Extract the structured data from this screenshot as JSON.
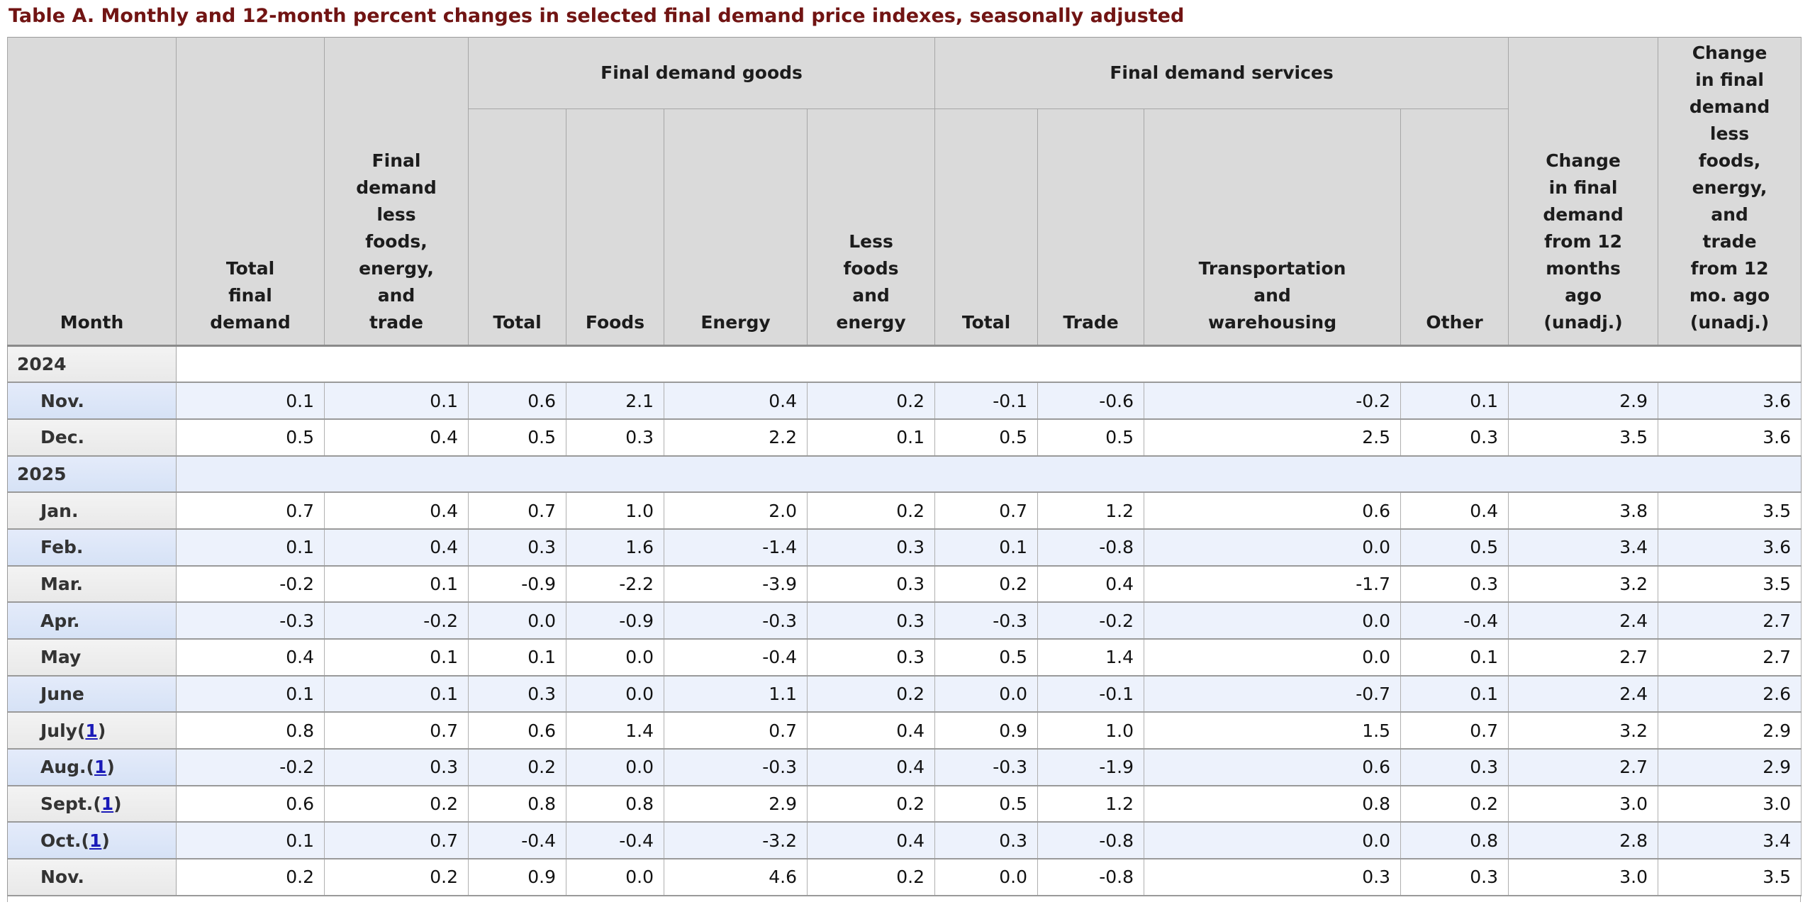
{
  "page": {
    "title": "Table A. Monthly and 12-month percent changes in selected final demand price indexes, seasonally adjusted"
  },
  "chart_data": {
    "type": "table",
    "title": "Table A. Monthly and 12-month percent changes in selected final demand price indexes, seasonally adjusted",
    "groups": [
      {
        "label": "Final demand goods",
        "span": 4
      },
      {
        "label": "Final demand services",
        "span": 4
      }
    ],
    "columns": [
      {
        "label": "Month"
      },
      {
        "label": "Total\nfinal\ndemand"
      },
      {
        "label": "Final\ndemand\nless\nfoods,\nenergy,\nand\ntrade"
      },
      {
        "label": "Total",
        "group": "Final demand goods"
      },
      {
        "label": "Foods",
        "group": "Final demand goods"
      },
      {
        "label": "Energy",
        "group": "Final demand goods"
      },
      {
        "label": "Less\nfoods\nand\nenergy",
        "group": "Final demand goods"
      },
      {
        "label": "Total",
        "group": "Final demand services"
      },
      {
        "label": "Trade",
        "group": "Final demand services"
      },
      {
        "label": "Transportation\nand\nwarehousing",
        "group": "Final demand services"
      },
      {
        "label": "Other",
        "group": "Final demand services"
      },
      {
        "label": "Change\nin final\ndemand\nfrom 12\nmonths\nago\n(unadj.)"
      },
      {
        "label": "Change\nin final\ndemand\nless\nfoods,\nenergy,\nand\ntrade\nfrom 12\nmo. ago\n(unadj.)"
      }
    ],
    "rows": [
      {
        "type": "year",
        "month": "2024"
      },
      {
        "type": "data",
        "month": "Nov.",
        "values": [
          "0.1",
          "0.1",
          "0.6",
          "2.1",
          "0.4",
          "0.2",
          "-0.1",
          "-0.6",
          "-0.2",
          "0.1",
          "2.9",
          "3.6"
        ]
      },
      {
        "type": "data",
        "month": "Dec.",
        "values": [
          "0.5",
          "0.4",
          "0.5",
          "0.3",
          "2.2",
          "0.1",
          "0.5",
          "0.5",
          "2.5",
          "0.3",
          "3.5",
          "3.6"
        ]
      },
      {
        "type": "year",
        "month": "2025"
      },
      {
        "type": "data",
        "month": "Jan.",
        "values": [
          "0.7",
          "0.4",
          "0.7",
          "1.0",
          "2.0",
          "0.2",
          "0.7",
          "1.2",
          "0.6",
          "0.4",
          "3.8",
          "3.5"
        ]
      },
      {
        "type": "data",
        "month": "Feb.",
        "values": [
          "0.1",
          "0.4",
          "0.3",
          "1.6",
          "-1.4",
          "0.3",
          "0.1",
          "-0.8",
          "0.0",
          "0.5",
          "3.4",
          "3.6"
        ]
      },
      {
        "type": "data",
        "month": "Mar.",
        "values": [
          "-0.2",
          "0.1",
          "-0.9",
          "-2.2",
          "-3.9",
          "0.3",
          "0.2",
          "0.4",
          "-1.7",
          "0.3",
          "3.2",
          "3.5"
        ]
      },
      {
        "type": "data",
        "month": "Apr.",
        "values": [
          "-0.3",
          "-0.2",
          "0.0",
          "-0.9",
          "-0.3",
          "0.3",
          "-0.3",
          "-0.2",
          "0.0",
          "-0.4",
          "2.4",
          "2.7"
        ]
      },
      {
        "type": "data",
        "month": "May",
        "values": [
          "0.4",
          "0.1",
          "0.1",
          "0.0",
          "-0.4",
          "0.3",
          "0.5",
          "1.4",
          "0.0",
          "0.1",
          "2.7",
          "2.7"
        ]
      },
      {
        "type": "data",
        "month": "June",
        "values": [
          "0.1",
          "0.1",
          "0.3",
          "0.0",
          "1.1",
          "0.2",
          "0.0",
          "-0.1",
          "-0.7",
          "0.1",
          "2.4",
          "2.6"
        ]
      },
      {
        "type": "data",
        "month": "July",
        "footnote": "1",
        "values": [
          "0.8",
          "0.7",
          "0.6",
          "1.4",
          "0.7",
          "0.4",
          "0.9",
          "1.0",
          "1.5",
          "0.7",
          "3.2",
          "2.9"
        ]
      },
      {
        "type": "data",
        "month": "Aug.",
        "footnote": "1",
        "values": [
          "-0.2",
          "0.3",
          "0.2",
          "0.0",
          "-0.3",
          "0.4",
          "-0.3",
          "-1.9",
          "0.6",
          "0.3",
          "2.7",
          "2.9"
        ]
      },
      {
        "type": "data",
        "month": "Sept.",
        "footnote": "1",
        "values": [
          "0.6",
          "0.2",
          "0.8",
          "0.8",
          "2.9",
          "0.2",
          "0.5",
          "1.2",
          "0.8",
          "0.2",
          "3.0",
          "3.0"
        ]
      },
      {
        "type": "data",
        "month": "Oct.",
        "footnote": "1",
        "values": [
          "0.1",
          "0.7",
          "-0.4",
          "-0.4",
          "-3.2",
          "0.4",
          "0.3",
          "-0.8",
          "0.0",
          "0.8",
          "2.8",
          "3.4"
        ]
      },
      {
        "type": "data",
        "month": "Nov.",
        "values": [
          "0.2",
          "0.2",
          "0.9",
          "0.0",
          "4.6",
          "0.2",
          "0.0",
          "-0.8",
          "0.3",
          "0.3",
          "3.0",
          "3.5"
        ]
      }
    ],
    "layout": {
      "grid": true,
      "stripe_colors": {
        "blue_row": "#edf2fc",
        "white_row": "#ffffff",
        "header_bg": "#dadada",
        "title_color": "#711413",
        "footnote_link_color": "#1a1ab8"
      }
    }
  }
}
